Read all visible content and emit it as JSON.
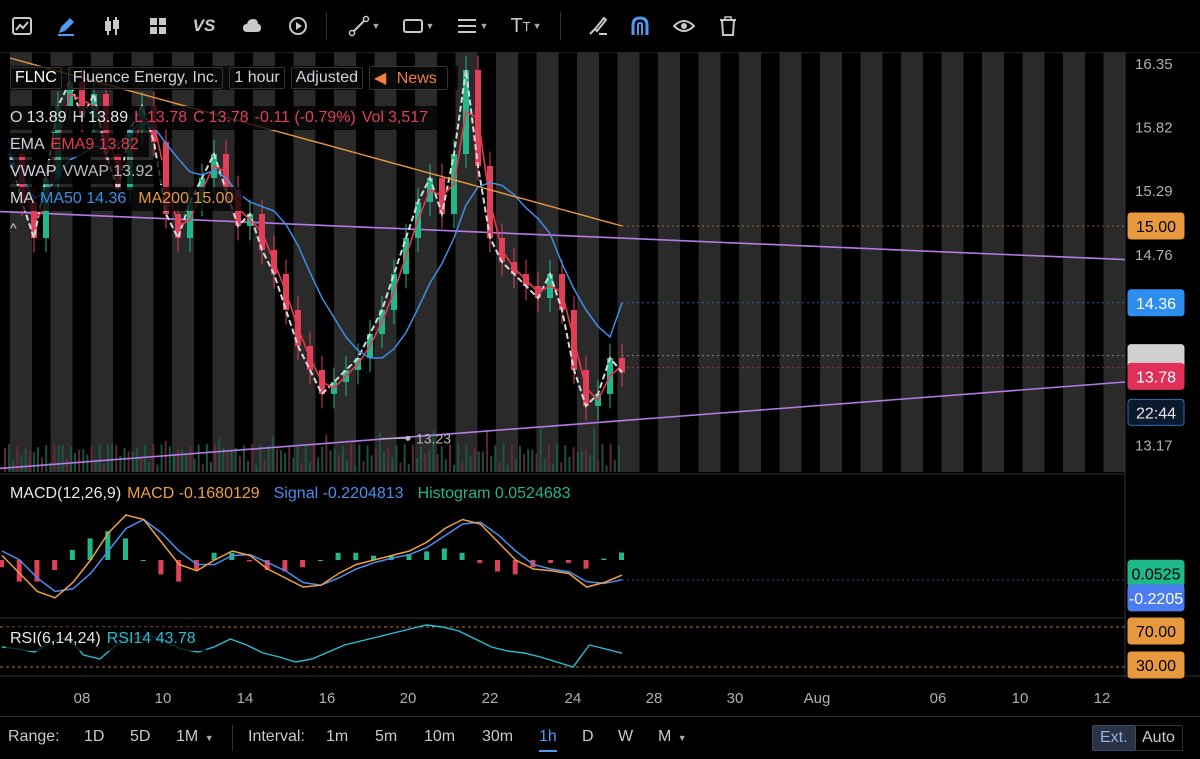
{
  "toolbar": {
    "icons": [
      "chart-icon",
      "pencil-icon",
      "candlestick-icon",
      "grid-icon",
      "vs-text",
      "cloud-icon",
      "replay-icon",
      "line-tool-icon",
      "rectangle-tool-icon",
      "fib-tool-icon",
      "text-tool-icon",
      "brush-icon",
      "magnet-icon",
      "eye-icon",
      "trash-icon"
    ],
    "vs_label": "VS",
    "text_tool_label": "T",
    "accent": "#4a9cf5"
  },
  "header": {
    "symbol": "FLNC",
    "company": "Fluence Energy, Inc.",
    "interval": "1 hour",
    "adjusted": "Adjusted",
    "news": "News",
    "ohlc": {
      "o_label": "O",
      "o": "13.89",
      "h_label": "H",
      "h": "13.89",
      "l_label": "L",
      "l": "13.78",
      "c_label": "C",
      "c": "13.78",
      "change": "-0.11 (-0.79%)",
      "vol_label": "Vol",
      "vol": "3,517"
    },
    "ema_label": "EMA",
    "ema_value": "EMA9 13.82",
    "vwap_label": "VWAP",
    "vwap_value": "VWAP 13.92",
    "ma_label": "MA",
    "ma50_value": "MA50 14.36",
    "ma200_value": "MA200 15.00",
    "collapse_label": "^"
  },
  "macd_legend": {
    "name": "MACD(12,26,9)",
    "macd": "MACD -0.1680129",
    "signal": "Signal -0.2204813",
    "hist": "Histogram 0.0524683"
  },
  "rsi_legend": {
    "name": "RSI(6,14,24)",
    "rsi": "RSI14 43.78"
  },
  "price_labels": {
    "ma200": "15.00",
    "ma50": "14.36",
    "last": "13.78",
    "countdown": "22:44",
    "macd_hist": "0.0525",
    "macd_signal": "-0.2205",
    "rsi_high": "70.00",
    "rsi_low": "30.00",
    "low_marker": "13.23"
  },
  "bottombar": {
    "range_label": "Range:",
    "ranges": [
      "1D",
      "5D",
      "1M"
    ],
    "interval_label": "Interval:",
    "intervals": [
      "1m",
      "5m",
      "10m",
      "30m",
      "1h",
      "D",
      "W",
      "M"
    ],
    "active_interval": "1h",
    "ext": "Ext.",
    "auto": "Auto"
  },
  "chart_data": {
    "type": "candlestick",
    "symbol": "FLNC",
    "x_tick_labels": [
      "08",
      "10",
      "14",
      "16",
      "20",
      "22",
      "24",
      "28",
      "30",
      "Aug",
      "06",
      "10",
      "12"
    ],
    "y_tick_labels": [
      "16.35",
      "15.82",
      "15.29",
      "14.76",
      "13.17"
    ],
    "ylim": [
      12.95,
      16.45
    ],
    "candles_close_approx": [
      15.6,
      15.2,
      14.9,
      15.4,
      16.0,
      16.2,
      15.9,
      16.1,
      15.6,
      15.3,
      15.8,
      16.0,
      15.7,
      15.1,
      14.9,
      15.2,
      15.4,
      15.6,
      15.3,
      15.0,
      15.1,
      14.8,
      14.6,
      14.3,
      14.0,
      13.8,
      13.6,
      13.7,
      13.8,
      13.9,
      14.1,
      14.3,
      14.6,
      14.9,
      15.2,
      15.4,
      15.1,
      15.6,
      16.3,
      15.5,
      14.9,
      14.7,
      14.6,
      14.5,
      14.4,
      14.6,
      14.3,
      13.8,
      13.5,
      13.6,
      13.9,
      13.78
    ],
    "series": [
      {
        "name": "EMA9",
        "color": "#e8394d"
      },
      {
        "name": "VWAP",
        "color": "#d9d9d9"
      },
      {
        "name": "MA50",
        "color": "#3d8ee6",
        "last": 14.36
      },
      {
        "name": "MA200",
        "color": "#e8983d",
        "last": 15.0
      }
    ],
    "trendlines": [
      {
        "color": "#b47be6",
        "from": 15.12,
        "to": 14.72
      },
      {
        "color": "#b47be6",
        "from": 12.98,
        "to": 13.7
      }
    ],
    "low_marker": 13.23,
    "last_price": 13.78,
    "macd": {
      "macd": -0.1680129,
      "signal": -0.2204813,
      "histogram": 0.0524683,
      "colors": {
        "macd": "#f0a040",
        "signal": "#4a8ef0",
        "hist_pos": "#1fb88a",
        "hist_neg": "#e0405a"
      },
      "macd_series": [
        0.05,
        -0.15,
        -0.35,
        -0.42,
        -0.25,
        0.0,
        0.3,
        0.5,
        0.45,
        0.2,
        -0.05,
        -0.12,
        0.0,
        0.1,
        0.05,
        -0.1,
        -0.2,
        -0.3,
        -0.28,
        -0.15,
        -0.05,
        0.0,
        0.05,
        0.1,
        0.2,
        0.35,
        0.45,
        0.4,
        0.2,
        0.0,
        -0.1,
        -0.12,
        -0.15,
        -0.3,
        -0.25,
        -0.168
      ],
      "signal_series": [
        0.1,
        0.0,
        -0.2,
        -0.35,
        -0.32,
        -0.15,
        0.1,
        0.35,
        0.45,
        0.3,
        0.1,
        -0.05,
        -0.05,
        0.05,
        0.06,
        -0.03,
        -0.12,
        -0.25,
        -0.28,
        -0.2,
        -0.1,
        -0.03,
        0.02,
        0.06,
        0.14,
        0.27,
        0.4,
        0.42,
        0.28,
        0.1,
        -0.05,
        -0.1,
        -0.13,
        -0.24,
        -0.26,
        -0.22
      ]
    },
    "rsi": {
      "value": 43.78,
      "upper": 70,
      "lower": 30,
      "color": "#22c1d6",
      "series": [
        50,
        48,
        45,
        55,
        60,
        42,
        38,
        52,
        58,
        62,
        55,
        48,
        45,
        50,
        58,
        52,
        44,
        40,
        35,
        38,
        45,
        52,
        56,
        60,
        64,
        68,
        72,
        70,
        66,
        58,
        50,
        46,
        44,
        40,
        35,
        30,
        52,
        48,
        43.78
      ]
    }
  }
}
